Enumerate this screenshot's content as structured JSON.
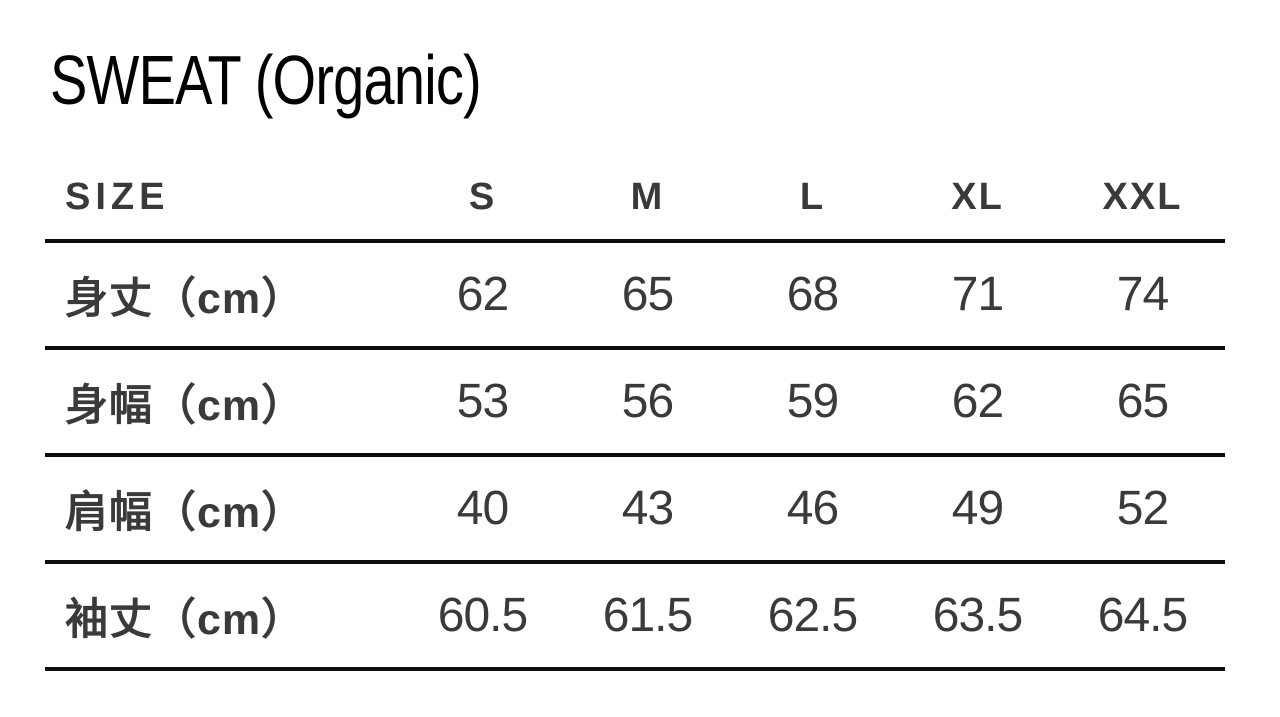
{
  "page": {
    "title": "SWEAT (Organic)"
  },
  "table": {
    "header": {
      "size_label": "SIZE",
      "columns": [
        "S",
        "M",
        "L",
        "XL",
        "XXL"
      ]
    },
    "rows": [
      {
        "label": "身丈（cm）",
        "values": [
          "62",
          "65",
          "68",
          "71",
          "74"
        ]
      },
      {
        "label": "身幅（cm）",
        "values": [
          "53",
          "56",
          "59",
          "62",
          "65"
        ]
      },
      {
        "label": "肩幅（cm）",
        "values": [
          "40",
          "43",
          "46",
          "49",
          "52"
        ]
      },
      {
        "label": "袖丈（cm）",
        "values": [
          "60.5",
          "61.5",
          "62.5",
          "63.5",
          "64.5"
        ]
      }
    ]
  },
  "chart_data": {
    "type": "table",
    "title": "SWEAT (Organic)",
    "columns": [
      "SIZE",
      "S",
      "M",
      "L",
      "XL",
      "XXL"
    ],
    "rows": [
      [
        "身丈（cm）",
        62,
        65,
        68,
        71,
        74
      ],
      [
        "身幅（cm）",
        53,
        56,
        59,
        62,
        65
      ],
      [
        "肩幅（cm）",
        40,
        43,
        46,
        49,
        52
      ],
      [
        "袖丈（cm）",
        60.5,
        61.5,
        62.5,
        63.5,
        64.5
      ]
    ]
  },
  "colors": {
    "background": "#ffffff",
    "title_text": "#000000",
    "table_text": "#3a3a3a",
    "rule": "#0d0d0d"
  }
}
